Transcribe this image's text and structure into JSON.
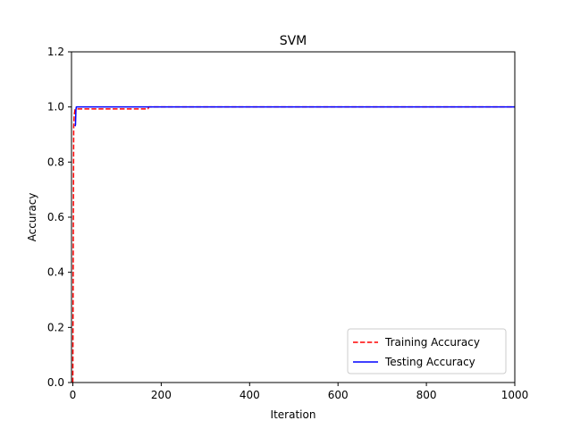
{
  "chart_data": {
    "type": "line",
    "title": "SVM",
    "xlabel": "Iteration",
    "ylabel": "Accuracy",
    "xlim": [
      -3,
      1000
    ],
    "ylim": [
      0,
      1.2
    ],
    "x_ticks": [
      0,
      200,
      400,
      600,
      800,
      1000
    ],
    "y_ticks": [
      0.0,
      0.2,
      0.4,
      0.6,
      0.8,
      1.0,
      1.2
    ],
    "x_tick_labels": [
      "0",
      "200",
      "400",
      "600",
      "800",
      "1000"
    ],
    "y_tick_labels": [
      "0.0",
      "0.2",
      "0.4",
      "0.6",
      "0.8",
      "1.0",
      "1.2"
    ],
    "grid": false,
    "legend_position": "lower-right",
    "series": [
      {
        "name": "Training Accuracy",
        "color": "#ff0000",
        "style": "dashed",
        "x": [
          0,
          1,
          2,
          3,
          5,
          10,
          50,
          100,
          150,
          170,
          172,
          200,
          400,
          600,
          800,
          1000
        ],
        "y": [
          0.0,
          0.5,
          0.93,
          0.97,
          0.99,
          0.993,
          0.993,
          0.993,
          0.993,
          0.993,
          1.0,
          1.0,
          1.0,
          1.0,
          1.0,
          1.0
        ]
      },
      {
        "name": "Testing Accuracy",
        "color": "#0000ff",
        "style": "solid",
        "x": [
          5,
          6,
          7,
          8,
          10,
          50,
          200,
          400,
          600,
          800,
          1000
        ],
        "y": [
          0.93,
          0.935,
          0.99,
          1.0,
          1.0,
          1.0,
          1.0,
          1.0,
          1.0,
          1.0,
          1.0
        ]
      }
    ]
  }
}
